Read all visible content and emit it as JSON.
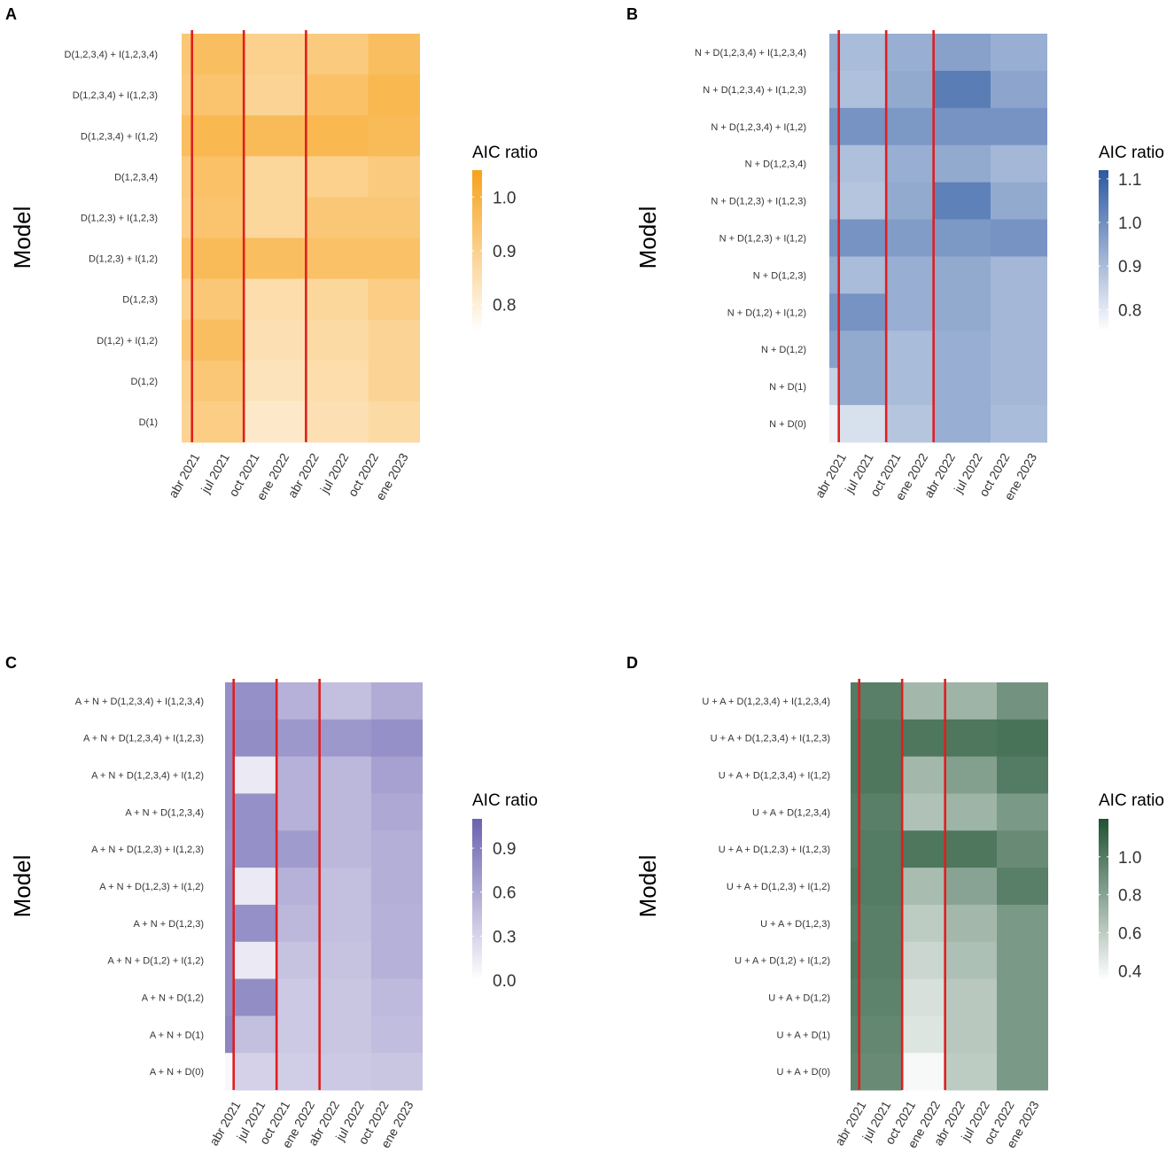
{
  "chart_data": [
    {
      "panel": "A",
      "type": "heatmap",
      "ylabel": "Model",
      "legend_title": "AIC ratio",
      "color": "#f7a21b",
      "color_min": 0.75,
      "color_max": 1.05,
      "legend_ticks": [
        1.0,
        0.9,
        0.8
      ],
      "legend_tick_labels": [
        "1.0",
        "0.9",
        "0.8"
      ],
      "x_ticks": [
        "abr 2021",
        "jul 2021",
        "oct 2021",
        "ene 2022",
        "abr 2022",
        "jul 2022",
        "oct 2022",
        "ene 2023"
      ],
      "date_range": [
        "2021-03",
        "2023-02"
      ],
      "vlines": [
        "2021-04",
        "2021-09",
        "2022-03"
      ],
      "models": [
        "D(1,2,3,4) + I(1,2,3,4)",
        "D(1,2,3,4) + I(1,2,3)",
        "D(1,2,3,4) + I(1,2)",
        "D(1,2,3,4)",
        "D(1,2,3) + I(1,2,3)",
        "D(1,2,3) + I(1,2)",
        "D(1,2,3)",
        "D(1,2) + I(1,2)",
        "D(1,2)",
        "D(1)"
      ],
      "row_values": [
        [
          0.93,
          0.96,
          0.9,
          0.92,
          0.96,
          0.95
        ],
        [
          0.92,
          0.94,
          0.89,
          0.95,
          0.98,
          0.96
        ],
        [
          0.96,
          0.98,
          0.97,
          0.98,
          0.97,
          0.97
        ],
        [
          0.92,
          0.95,
          0.88,
          0.9,
          0.92,
          0.92
        ],
        [
          0.91,
          0.94,
          0.88,
          0.93,
          0.93,
          0.92
        ],
        [
          0.95,
          0.97,
          0.96,
          0.95,
          0.95,
          0.95
        ],
        [
          0.9,
          0.93,
          0.86,
          0.88,
          0.91,
          0.91
        ],
        [
          0.93,
          0.96,
          0.85,
          0.87,
          0.89,
          0.89
        ],
        [
          0.9,
          0.93,
          0.84,
          0.86,
          0.89,
          0.89
        ],
        [
          0.89,
          0.91,
          0.82,
          0.85,
          0.87,
          0.87
        ]
      ]
    },
    {
      "panel": "B",
      "type": "heatmap",
      "ylabel": "Model",
      "legend_title": "AIC ratio",
      "color": "#2c59a2",
      "color_min": 0.75,
      "color_max": 1.12,
      "legend_ticks": [
        1.1,
        1.0,
        0.9,
        0.8
      ],
      "legend_tick_labels": [
        "1.1",
        "1.0",
        "0.9",
        "0.8"
      ],
      "x_ticks": [
        "abr 2021",
        "jul 2021",
        "oct 2021",
        "ene 2022",
        "abr 2022",
        "jul 2022",
        "oct 2022",
        "ene 2023"
      ],
      "date_range": [
        "2021-03",
        "2023-02"
      ],
      "vlines": [
        "2021-04",
        "2021-09",
        "2022-02"
      ],
      "models": [
        "N + D(1,2,3,4) + I(1,2,3,4)",
        "N + D(1,2,3,4) + I(1,2,3)",
        "N + D(1,2,3,4) + I(1,2)",
        "N + D(1,2,3,4)",
        "N + D(1,2,3) + I(1,2,3)",
        "N + D(1,2,3) + I(1,2)",
        "N + D(1,2,3)",
        "N + D(1,2) + I(1,2)",
        "N + D(1,2)",
        "N + D(1)",
        "N + D(0)"
      ],
      "row_values": [
        [
          0.94,
          0.9,
          0.93,
          0.96,
          0.93,
          0.92
        ],
        [
          0.93,
          0.89,
          0.94,
          1.04,
          0.95,
          0.94
        ],
        [
          0.99,
          0.99,
          0.98,
          0.99,
          0.99,
          0.99
        ],
        [
          0.94,
          0.89,
          0.93,
          0.94,
          0.91,
          0.91
        ],
        [
          0.93,
          0.88,
          0.94,
          1.03,
          0.94,
          0.93
        ],
        [
          0.99,
          0.99,
          0.97,
          0.98,
          0.99,
          0.99
        ],
        [
          0.94,
          0.9,
          0.93,
          0.94,
          0.91,
          0.91
        ],
        [
          0.99,
          0.99,
          0.93,
          0.94,
          0.91,
          0.91
        ],
        [
          0.96,
          0.94,
          0.9,
          0.93,
          0.91,
          0.91
        ],
        [
          0.85,
          0.94,
          0.9,
          0.93,
          0.91,
          0.91
        ],
        [
          0.78,
          0.82,
          0.88,
          0.93,
          0.9,
          0.9
        ]
      ]
    },
    {
      "panel": "C",
      "type": "heatmap",
      "ylabel": "Model",
      "legend_title": "AIC ratio",
      "color": "#6a62b0",
      "color_min": 0.0,
      "color_max": 1.1,
      "legend_ticks": [
        0.9,
        0.6,
        0.3,
        0.0
      ],
      "legend_tick_labels": [
        "0.9",
        "0.6",
        "0.3",
        "0.0"
      ],
      "x_ticks": [
        "abr 2021",
        "jul 2021",
        "oct 2021",
        "ene 2022",
        "abr 2022",
        "jul 2022",
        "oct 2022",
        "ene 2023"
      ],
      "date_range": [
        "2021-03",
        "2023-02"
      ],
      "vlines": [
        "2021-04",
        "2021-09",
        "2022-02"
      ],
      "models": [
        "A + N + D(1,2,3,4) + I(1,2,3,4)",
        "A + N + D(1,2,3,4) + I(1,2,3)",
        "A + N + D(1,2,3,4) + I(1,2)",
        "A + N + D(1,2,3,4)",
        "A + N + D(1,2,3) + I(1,2,3)",
        "A + N + D(1,2,3) + I(1,2)",
        "A + N + D(1,2,3)",
        "A + N + D(1,2) + I(1,2)",
        "A + N + D(1,2)",
        "A + N + D(1)",
        "A + N + D(0)"
      ],
      "row_values": [
        [
          0.78,
          0.78,
          0.55,
          0.45,
          0.58,
          0.58
        ],
        [
          0.8,
          0.8,
          0.72,
          0.72,
          0.78,
          0.78
        ],
        [
          0.8,
          0.15,
          0.55,
          0.5,
          0.66,
          0.66
        ],
        [
          0.8,
          0.78,
          0.55,
          0.5,
          0.6,
          0.6
        ],
        [
          0.78,
          0.78,
          0.7,
          0.5,
          0.56,
          0.56
        ],
        [
          0.8,
          0.15,
          0.55,
          0.45,
          0.56,
          0.56
        ],
        [
          0.8,
          0.78,
          0.5,
          0.45,
          0.55,
          0.55
        ],
        [
          0.8,
          0.15,
          0.42,
          0.42,
          0.55,
          0.55
        ],
        [
          0.8,
          0.8,
          0.38,
          0.4,
          0.48,
          0.48
        ],
        [
          0.85,
          0.45,
          0.38,
          0.4,
          0.46,
          0.46
        ],
        [
          0.05,
          0.32,
          0.35,
          0.38,
          0.4,
          0.4
        ]
      ]
    },
    {
      "panel": "D",
      "type": "heatmap",
      "ylabel": "Model",
      "legend_title": "AIC ratio",
      "color": "#1f5233",
      "color_min": 0.35,
      "color_max": 1.2,
      "legend_ticks": [
        1.0,
        0.8,
        0.6,
        0.4
      ],
      "legend_tick_labels": [
        "1.0",
        "0.8",
        "0.6",
        "0.4"
      ],
      "x_ticks": [
        "abr 2021",
        "jul 2021",
        "oct 2021",
        "ene 2022",
        "abr 2022",
        "jul 2022",
        "oct 2022",
        "ene 2023"
      ],
      "date_range": [
        "2021-03",
        "2023-02"
      ],
      "vlines": [
        "2021-04",
        "2021-09",
        "2022-02"
      ],
      "models": [
        "U + A + D(1,2,3,4) + I(1,2,3,4)",
        "U + A + D(1,2,3,4) + I(1,2,3)",
        "U + A + D(1,2,3,4) + I(1,2)",
        "U + A + D(1,2,3,4)",
        "U + A + D(1,2,3) + I(1,2,3)",
        "U + A + D(1,2,3) + I(1,2)",
        "U + A + D(1,2,3)",
        "U + A + D(1,2) + I(1,2)",
        "U + A + D(1,2)",
        "U + A + D(1)",
        "U + A + D(0)"
      ],
      "row_values": [
        [
          1.0,
          0.98,
          0.7,
          0.72,
          0.88,
          0.88
        ],
        [
          1.02,
          1.02,
          1.02,
          1.02,
          1.04,
          1.04
        ],
        [
          1.02,
          1.02,
          0.7,
          0.82,
          1.0,
          1.0
        ],
        [
          1.0,
          0.98,
          0.65,
          0.72,
          0.85,
          0.85
        ],
        [
          1.0,
          1.0,
          1.02,
          1.02,
          0.92,
          0.92
        ],
        [
          1.02,
          1.0,
          0.68,
          0.8,
          0.98,
          0.98
        ],
        [
          1.0,
          0.98,
          0.6,
          0.7,
          0.85,
          0.85
        ],
        [
          1.02,
          0.98,
          0.55,
          0.66,
          0.85,
          0.85
        ],
        [
          1.0,
          0.96,
          0.5,
          0.62,
          0.85,
          0.85
        ],
        [
          0.98,
          0.94,
          0.48,
          0.62,
          0.85,
          0.85
        ],
        [
          0.96,
          0.92,
          0.38,
          0.6,
          0.85,
          0.85
        ]
      ]
    }
  ]
}
